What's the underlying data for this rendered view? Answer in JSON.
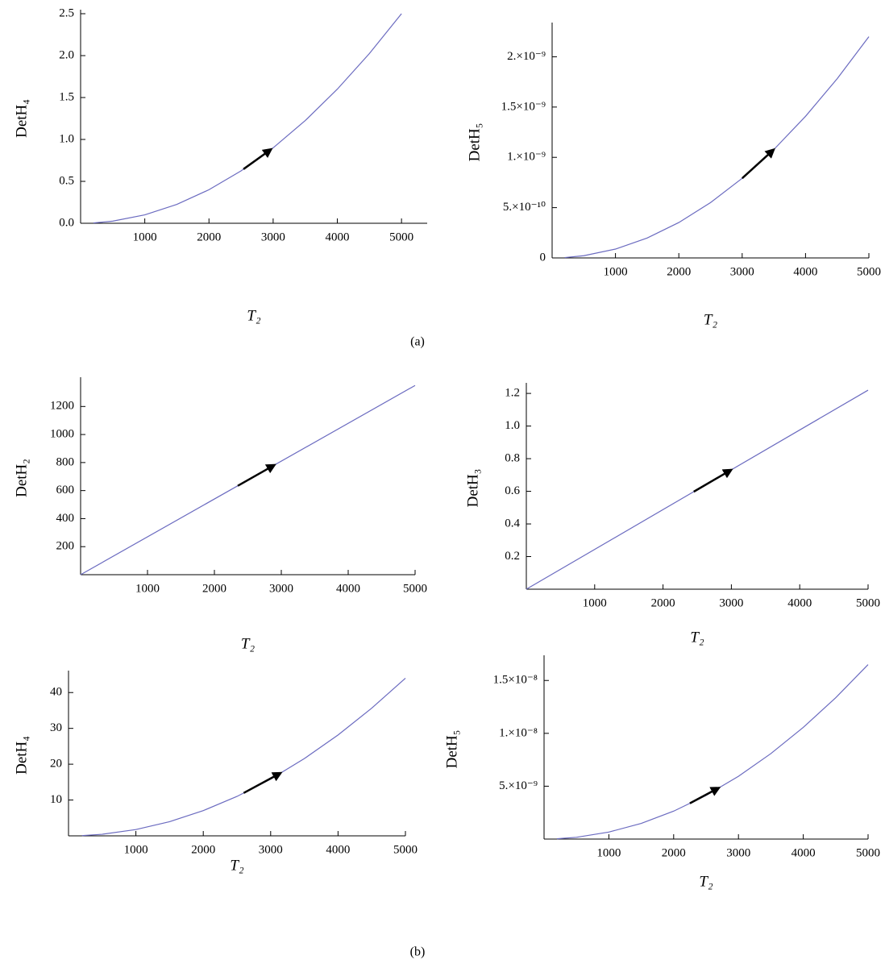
{
  "chart_data": [
    {
      "type": "line",
      "y_label": "DetH₄",
      "x_label": "T₂",
      "color": "#6b6bc0",
      "x": [
        200,
        500,
        1000,
        1500,
        2000,
        2500,
        3000,
        3500,
        4000,
        4500,
        5000
      ],
      "values": [
        0.004,
        0.025,
        0.1,
        0.225,
        0.4,
        0.625,
        0.9,
        1.225,
        1.6,
        2.025,
        2.5
      ],
      "xlim": [
        0,
        5400
      ],
      "xticks": [
        1000,
        2000,
        3000,
        4000,
        5000
      ],
      "ylim": [
        0,
        2.5
      ],
      "yticks": [
        {
          "value": 0,
          "label": "0.0"
        },
        0.5,
        {
          "value": 1,
          "label": "1.0"
        },
        1.5,
        {
          "value": 2,
          "label": "2.0"
        },
        2.5
      ]
    },
    {
      "type": "line",
      "y_label": "DetH₅",
      "x_label": "T₂",
      "color": "#6b6bc0",
      "x": [
        200,
        500,
        1000,
        1500,
        2000,
        2500,
        3000,
        3500,
        4000,
        4500,
        5000
      ],
      "values": [
        3.52e-12,
        2.2e-11,
        8.8e-11,
        1.98e-10,
        3.52e-10,
        5.5e-10,
        7.92e-10,
        1.078e-09,
        1.408e-09,
        1.782e-09,
        2.2e-09
      ],
      "xlim": [
        0,
        5000
      ],
      "xticks": [
        1000,
        2000,
        3000,
        4000,
        5000
      ],
      "ylim": [
        0,
        2.3e-09
      ],
      "yticks": [
        0,
        {
          "value": 5e-10,
          "label": "5.×10⁻¹⁰"
        },
        {
          "value": 1e-09,
          "label": "1.×10⁻⁹"
        },
        {
          "value": 1.5e-09,
          "label": "1.5×10⁻⁹"
        },
        {
          "value": 2e-09,
          "label": "2.×10⁻⁹"
        }
      ]
    },
    {
      "type": "line",
      "y_label": "DetH₂",
      "x_label": "T₂",
      "color": "#6b6bc0",
      "x": [
        0,
        5000
      ],
      "values": [
        0,
        1350
      ],
      "xlim": [
        0,
        5000
      ],
      "xticks": [
        1000,
        2000,
        3000,
        4000,
        5000
      ],
      "ylim": [
        0,
        1380
      ],
      "yticks": [
        200,
        400,
        600,
        800,
        1000,
        1200
      ]
    },
    {
      "type": "line",
      "y_label": "DetH₃",
      "x_label": "T₂",
      "color": "#6b6bc0",
      "x": [
        0,
        5000
      ],
      "values": [
        0,
        1.22
      ],
      "xlim": [
        0,
        5000
      ],
      "xticks": [
        1000,
        2000,
        3000,
        4000,
        5000
      ],
      "ylim": [
        0,
        1.24
      ],
      "yticks": [
        0.2,
        0.4,
        0.6,
        0.8,
        {
          "value": 1,
          "label": "1.0"
        },
        1.2
      ]
    },
    {
      "type": "line",
      "y_label": "DetH₄",
      "x_label": "T₂",
      "color": "#6b6bc0",
      "x": [
        200,
        500,
        1000,
        1500,
        2000,
        2500,
        3000,
        3500,
        4000,
        4500,
        5000
      ],
      "values": [
        0.07,
        0.44,
        1.76,
        3.96,
        7.04,
        11.0,
        15.84,
        21.56,
        28.16,
        35.64,
        44
      ],
      "xlim": [
        0,
        5000
      ],
      "xticks": [
        1000,
        2000,
        3000,
        4000,
        5000
      ],
      "ylim": [
        0,
        45
      ],
      "yticks": [
        10,
        20,
        30,
        40
      ]
    },
    {
      "type": "line",
      "y_label": "DetH₅",
      "x_label": "T₂",
      "color": "#6b6bc0",
      "x": [
        200,
        500,
        1000,
        1500,
        2000,
        2500,
        3000,
        3500,
        4000,
        4500,
        5000
      ],
      "values": [
        2.64e-11,
        1.65e-10,
        6.6e-10,
        1.485e-09,
        2.64e-09,
        4.125e-09,
        5.94e-09,
        8.085e-09,
        1.056e-08,
        1.3365e-08,
        1.65e-08
      ],
      "xlim": [
        0,
        5000
      ],
      "xticks": [
        1000,
        2000,
        3000,
        4000,
        5000
      ],
      "ylim": [
        0,
        1.7e-08
      ],
      "yticks": [
        {
          "value": 5e-09,
          "label": "5.×10⁻⁹"
        },
        {
          "value": 1e-08,
          "label": "1.×10⁻⁸"
        },
        {
          "value": 1.5e-08,
          "label": "1.5×10⁻⁸"
        }
      ]
    }
  ],
  "captions": [
    "(a)",
    "(b)"
  ]
}
